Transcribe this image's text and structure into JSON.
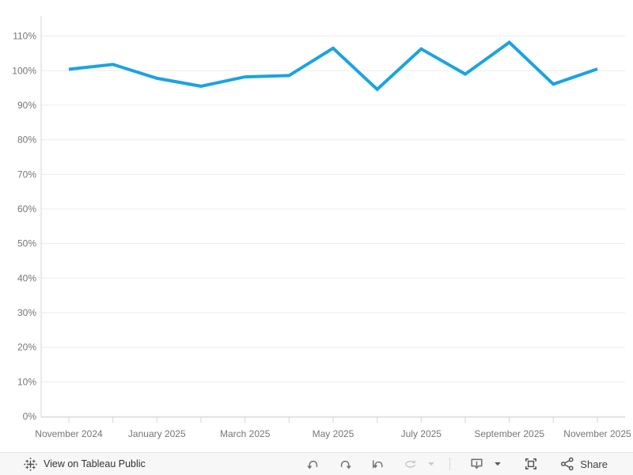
{
  "chart_data": {
    "type": "line",
    "title": "",
    "xlabel": "",
    "ylabel": "",
    "x": [
      "November 2024",
      "December 2024",
      "January 2025",
      "February 2025",
      "March 2025",
      "April 2025",
      "May 2025",
      "June 2025",
      "July 2025",
      "August 2025",
      "September 2025",
      "October 2025",
      "November 2025"
    ],
    "series": [
      {
        "name": "percent-line",
        "values": [
          100.4,
          101.8,
          97.8,
          95.5,
          98.2,
          98.6,
          106.5,
          94.6,
          106.3,
          99.0,
          108.2,
          96.1,
          100.5
        ]
      }
    ],
    "shown_x_tick_label_indices": [
      0,
      2,
      4,
      6,
      8,
      10,
      12
    ],
    "y_tick_labels": [
      "0%",
      "10%",
      "20%",
      "30%",
      "40%",
      "50%",
      "60%",
      "70%",
      "80%",
      "90%",
      "100%",
      "110%"
    ],
    "ylim": [
      0,
      110
    ],
    "y_tick_step": 10,
    "grid": "horizontal",
    "legend": "none",
    "line_color": "#1BA3E1"
  },
  "colors": {
    "background": "#ffffff",
    "gridline": "#ebebeb",
    "axis_line": "#d6d6d6",
    "tick_label": "#767676",
    "toolbar_bg": "#f7f7f7",
    "toolbar_border": "#e3e3e3",
    "icon_enabled": "#737373",
    "icon_disabled": "#c9c9c9",
    "logo": "#4e4e4e"
  },
  "toolbar": {
    "view_label": "View on Tableau Public",
    "share_label": "Share",
    "icons": [
      "tableau-logo-icon",
      "undo-icon",
      "redo-icon",
      "replay-icon",
      "refresh-icon",
      "refresh-caret-icon",
      "download-icon",
      "download-caret-icon",
      "fullscreen-icon",
      "share-icon"
    ]
  }
}
